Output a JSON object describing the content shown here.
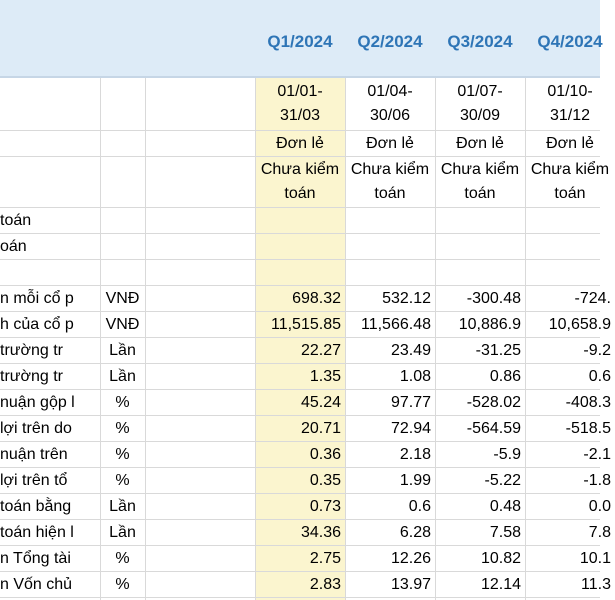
{
  "quarters": [
    "Q1/2024",
    "Q2/2024",
    "Q3/2024",
    "Q4/2024"
  ],
  "periods": [
    [
      "01/01-",
      "31/03"
    ],
    [
      "01/04-",
      "30/06"
    ],
    [
      "01/07-",
      "30/09"
    ],
    [
      "01/10-",
      "31/12"
    ]
  ],
  "report_type": [
    "Đơn lẻ",
    "Đơn lẻ",
    "Đơn lẻ",
    "Đơn lẻ"
  ],
  "audit_status": [
    [
      "Chưa kiểm",
      "toán"
    ],
    [
      "Chưa kiểm",
      "toán"
    ],
    [
      "Chưa kiểm",
      "toán"
    ],
    [
      "Chưa kiểm",
      "toán"
    ]
  ],
  "extra_labels": [
    "toán",
    "oán"
  ],
  "rows": [
    {
      "label": "n mỗi cổ p",
      "unit": "VNĐ",
      "values": [
        "698.32",
        "532.12",
        "-300.48",
        "-724."
      ]
    },
    {
      "label": "h của cổ p",
      "unit": "VNĐ",
      "values": [
        "11,515.85",
        "11,566.48",
        "10,886.9",
        "10,658.9"
      ]
    },
    {
      "label": "trường tr",
      "unit": "Lần",
      "values": [
        "22.27",
        "23.49",
        "-31.25",
        "-9.2"
      ]
    },
    {
      "label": "trường tr",
      "unit": "Lần",
      "values": [
        "1.35",
        "1.08",
        "0.86",
        "0.6"
      ]
    },
    {
      "label": "nuận gộp l",
      "unit": "%",
      "values": [
        "45.24",
        "97.77",
        "-528.02",
        "-408.3"
      ]
    },
    {
      "label": "lợi trên do",
      "unit": "%",
      "values": [
        "20.71",
        "72.94",
        "-564.59",
        "-518.5"
      ]
    },
    {
      "label": "nuận trên",
      "unit": "%",
      "values": [
        "0.36",
        "2.18",
        "-5.9",
        "-2.1"
      ]
    },
    {
      "label": "lợi trên tổ",
      "unit": "%",
      "values": [
        "0.35",
        "1.99",
        "-5.22",
        "-1.8"
      ]
    },
    {
      "label": "toán bằng",
      "unit": "Lần",
      "values": [
        "0.73",
        "0.6",
        "0.48",
        "0.0"
      ]
    },
    {
      "label": "toán hiện l",
      "unit": "Lần",
      "values": [
        "34.36",
        "6.28",
        "7.58",
        "7.8"
      ]
    },
    {
      "label": "n Tổng tài",
      "unit": "%",
      "values": [
        "2.75",
        "12.26",
        "10.82",
        "10.1"
      ]
    },
    {
      "label": "n Vốn chủ",
      "unit": "%",
      "values": [
        "2.83",
        "13.97",
        "12.14",
        "11.3"
      ]
    }
  ]
}
